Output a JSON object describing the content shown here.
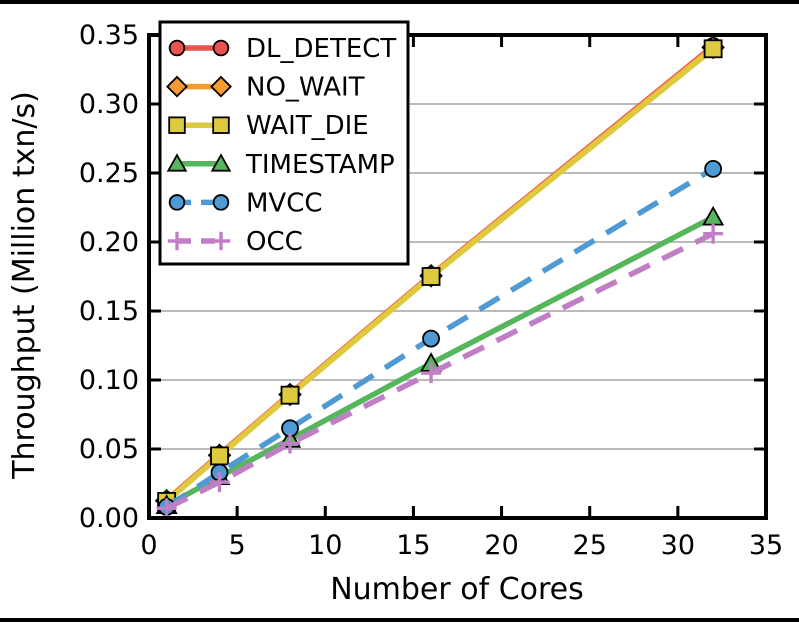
{
  "figure": {
    "background_color": "#ffffff",
    "frame_color": "#000000",
    "grid_color": "#b0b0b0"
  },
  "chart_data": {
    "type": "line",
    "title": "",
    "xlabel": "Number of Cores",
    "ylabel": "Throughput (Million txn/s)",
    "xlim": [
      0,
      35
    ],
    "ylim": [
      0,
      0.35
    ],
    "xticks": {
      "values": [
        0,
        5,
        10,
        15,
        20,
        25,
        30,
        35
      ],
      "labels": [
        "0",
        "5",
        "10",
        "15",
        "20",
        "25",
        "30",
        "35"
      ]
    },
    "yticks": {
      "values": [
        0,
        0.05,
        0.1,
        0.15,
        0.2,
        0.25,
        0.3,
        0.35
      ],
      "labels": [
        "0.00",
        "0.05",
        "0.10",
        "0.15",
        "0.20",
        "0.25",
        "0.30",
        "0.35"
      ]
    },
    "grid": "horizontal-only",
    "legend_position": "upper-left",
    "x": [
      1,
      4,
      8,
      16,
      32
    ],
    "series": [
      {
        "name": "DL_DETECT",
        "color": "#e8534e",
        "linestyle": "solid",
        "marker": "circle",
        "values": [
          0.013,
          0.046,
          0.09,
          0.176,
          0.342
        ]
      },
      {
        "name": "NO_WAIT",
        "color": "#f69a32",
        "linestyle": "solid",
        "marker": "diamond",
        "values": [
          0.0125,
          0.0455,
          0.0895,
          0.1755,
          0.341
        ]
      },
      {
        "name": "WAIT_DIE",
        "color": "#ddca3e",
        "linestyle": "solid",
        "marker": "square",
        "values": [
          0.012,
          0.045,
          0.089,
          0.175,
          0.34
        ]
      },
      {
        "name": "TIMESTAMP",
        "color": "#55b65b",
        "linestyle": "solid",
        "marker": "triangle",
        "values": [
          0.009,
          0.03,
          0.057,
          0.112,
          0.218
        ]
      },
      {
        "name": "MVCC",
        "color": "#4f9ad3",
        "linestyle": "dashed",
        "marker": "circle",
        "values": [
          0.008,
          0.033,
          0.065,
          0.13,
          0.253
        ]
      },
      {
        "name": "OCC",
        "color": "#c07fc5",
        "linestyle": "dashed",
        "marker": "plus",
        "values": [
          0.007,
          0.026,
          0.054,
          0.105,
          0.206
        ]
      }
    ]
  }
}
